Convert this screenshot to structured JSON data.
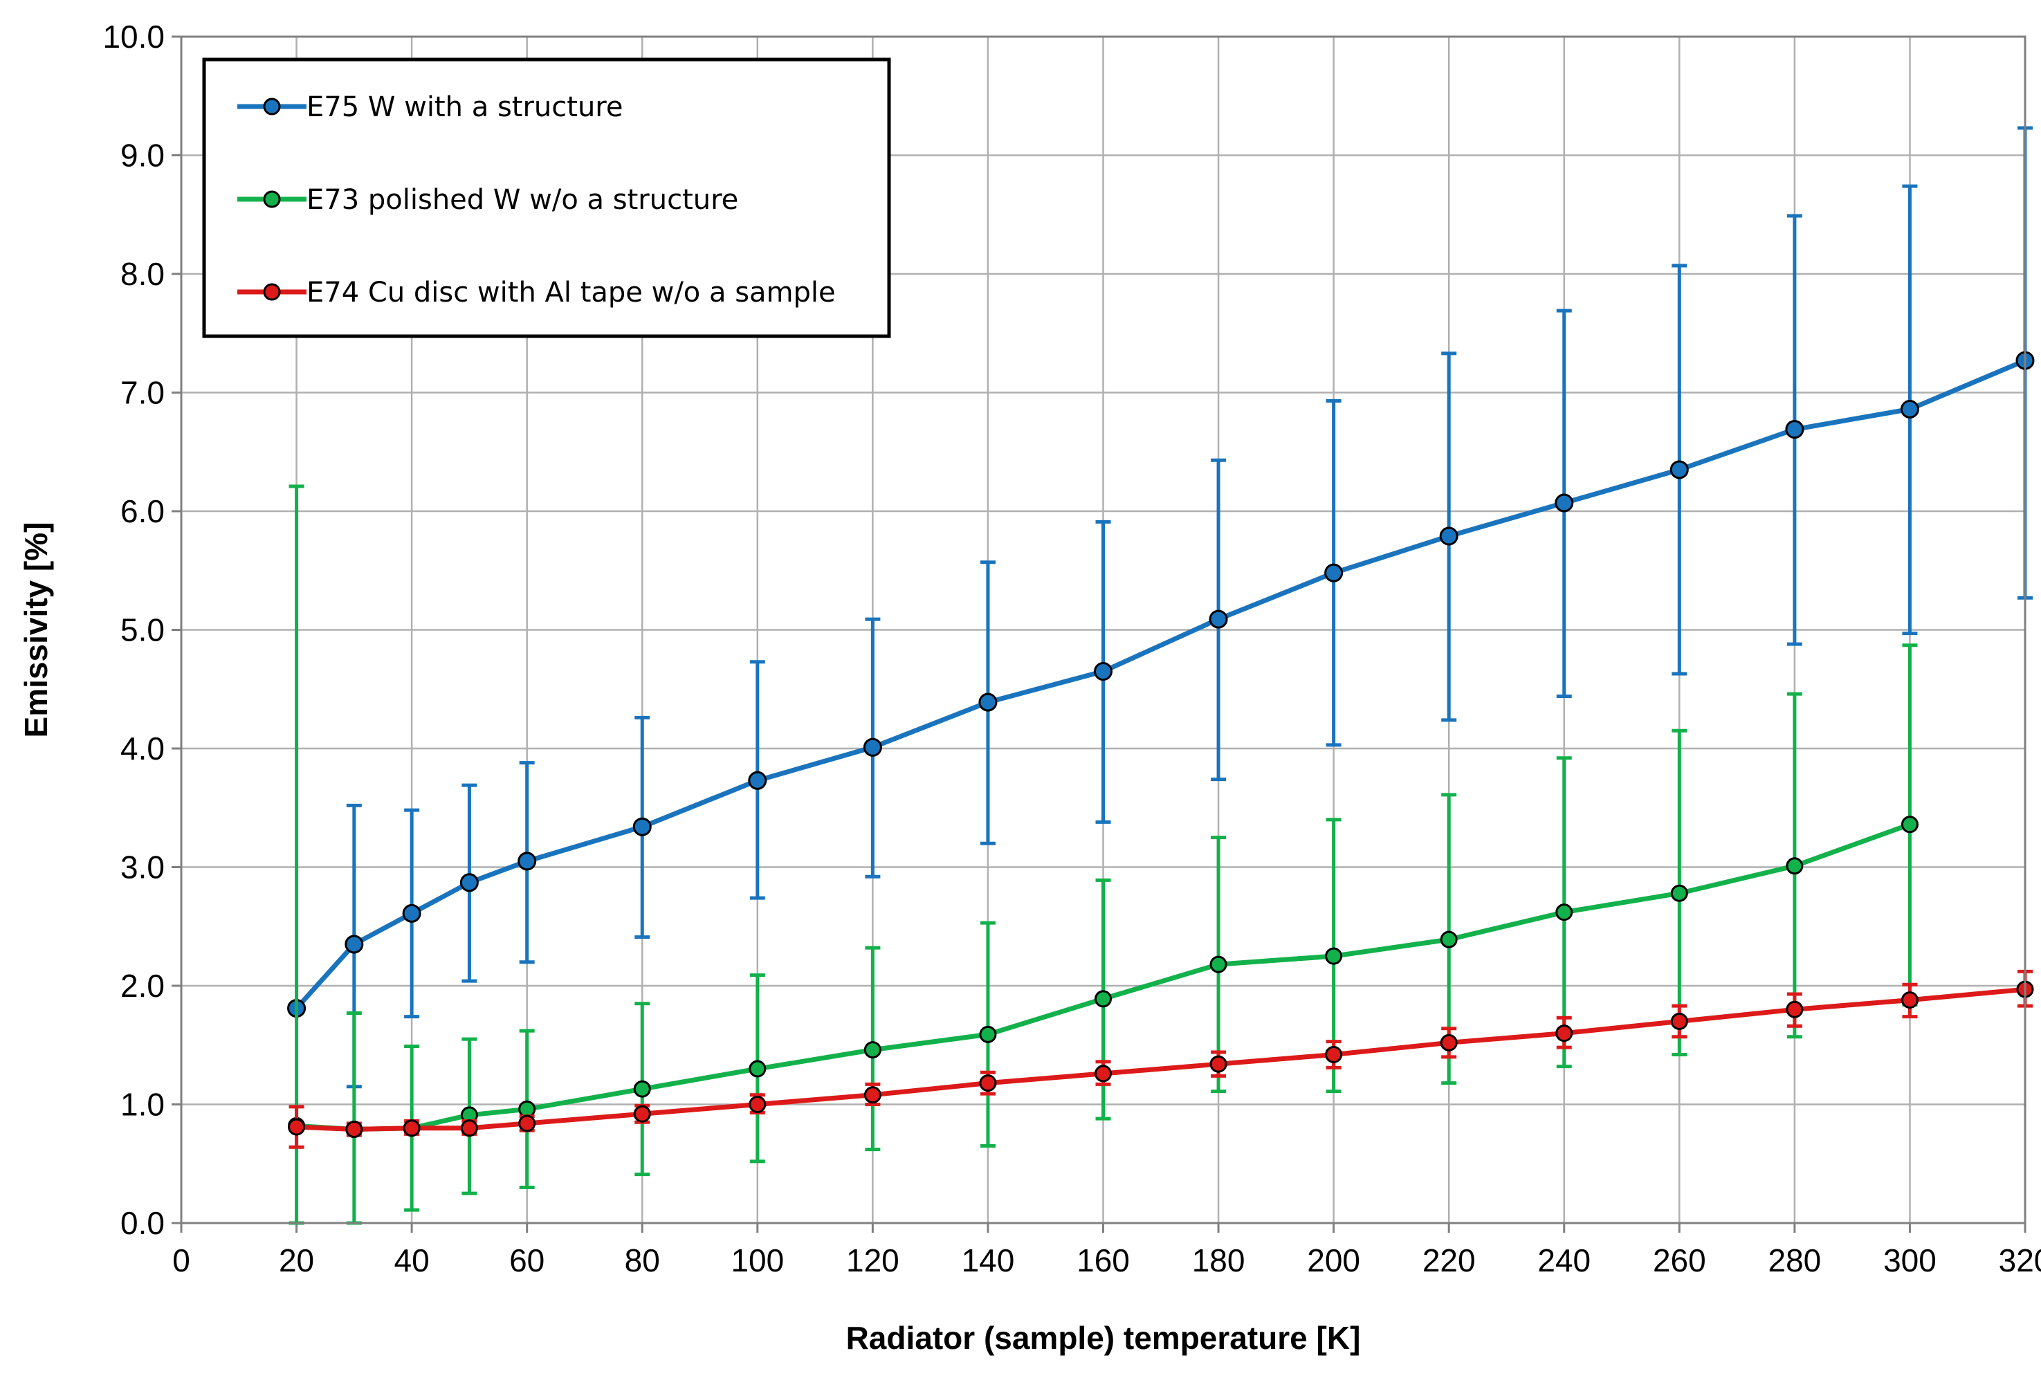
{
  "chart_data": {
    "type": "line",
    "title": "",
    "xlabel": "Radiator (sample) temperature [K]",
    "ylabel": "Emissivity [%]",
    "xlim": [
      0,
      320
    ],
    "ylim": [
      0,
      10
    ],
    "xticks": [
      "0",
      "20",
      "40",
      "60",
      "80",
      "100",
      "120",
      "140",
      "160",
      "180",
      "200",
      "220",
      "240",
      "260",
      "280",
      "300",
      "320"
    ],
    "yticks": [
      "0.0",
      "1.0",
      "2.0",
      "3.0",
      "4.0",
      "5.0",
      "6.0",
      "7.0",
      "8.0",
      "9.0",
      "10.0"
    ],
    "grid": true,
    "legend_position": "top-left",
    "series": [
      {
        "name": "E75 W with a structure",
        "color": "#1a74bd",
        "points": [
          {
            "x": 20,
            "y": 1.81,
            "lo": 1.81,
            "hi": 1.81
          },
          {
            "x": 30,
            "y": 2.35,
            "lo": 1.15,
            "hi": 3.52
          },
          {
            "x": 40,
            "y": 2.61,
            "lo": 1.74,
            "hi": 3.48
          },
          {
            "x": 50,
            "y": 2.87,
            "lo": 2.04,
            "hi": 3.69
          },
          {
            "x": 60,
            "y": 3.05,
            "lo": 2.2,
            "hi": 3.88
          },
          {
            "x": 80,
            "y": 3.34,
            "lo": 2.41,
            "hi": 4.26
          },
          {
            "x": 100,
            "y": 3.73,
            "lo": 2.74,
            "hi": 4.73
          },
          {
            "x": 120,
            "y": 4.01,
            "lo": 2.92,
            "hi": 5.09
          },
          {
            "x": 140,
            "y": 4.39,
            "lo": 3.2,
            "hi": 5.57
          },
          {
            "x": 160,
            "y": 4.65,
            "lo": 3.38,
            "hi": 5.91
          },
          {
            "x": 180,
            "y": 5.09,
            "lo": 3.74,
            "hi": 6.43
          },
          {
            "x": 200,
            "y": 5.48,
            "lo": 4.03,
            "hi": 6.93
          },
          {
            "x": 220,
            "y": 5.79,
            "lo": 4.24,
            "hi": 7.33
          },
          {
            "x": 240,
            "y": 6.07,
            "lo": 4.44,
            "hi": 7.69
          },
          {
            "x": 260,
            "y": 6.35,
            "lo": 4.63,
            "hi": 8.07
          },
          {
            "x": 280,
            "y": 6.69,
            "lo": 4.88,
            "hi": 8.49
          },
          {
            "x": 300,
            "y": 6.86,
            "lo": 4.97,
            "hi": 8.74
          },
          {
            "x": 320,
            "y": 7.27,
            "lo": 5.27,
            "hi": 9.23
          }
        ]
      },
      {
        "name": "E73 polished W w/o a structure",
        "color": "#12b14b",
        "points": [
          {
            "x": 20,
            "y": 0.82,
            "lo": 0.0,
            "hi": 6.21
          },
          {
            "x": 30,
            "y": 0.79,
            "lo": 0.0,
            "hi": 1.77
          },
          {
            "x": 40,
            "y": 0.8,
            "lo": 0.11,
            "hi": 1.49
          },
          {
            "x": 50,
            "y": 0.91,
            "lo": 0.25,
            "hi": 1.55
          },
          {
            "x": 60,
            "y": 0.96,
            "lo": 0.3,
            "hi": 1.62
          },
          {
            "x": 80,
            "y": 1.13,
            "lo": 0.41,
            "hi": 1.85
          },
          {
            "x": 100,
            "y": 1.3,
            "lo": 0.52,
            "hi": 2.09
          },
          {
            "x": 120,
            "y": 1.46,
            "lo": 0.62,
            "hi": 2.32
          },
          {
            "x": 140,
            "y": 1.59,
            "lo": 0.65,
            "hi": 2.53
          },
          {
            "x": 160,
            "y": 1.89,
            "lo": 0.88,
            "hi": 2.89
          },
          {
            "x": 180,
            "y": 2.18,
            "lo": 1.11,
            "hi": 3.25
          },
          {
            "x": 200,
            "y": 2.25,
            "lo": 1.11,
            "hi": 3.4
          },
          {
            "x": 220,
            "y": 2.39,
            "lo": 1.18,
            "hi": 3.61
          },
          {
            "x": 240,
            "y": 2.62,
            "lo": 1.32,
            "hi": 3.92
          },
          {
            "x": 260,
            "y": 2.78,
            "lo": 1.42,
            "hi": 4.15
          },
          {
            "x": 280,
            "y": 3.01,
            "lo": 1.57,
            "hi": 4.46
          },
          {
            "x": 300,
            "y": 3.36,
            "lo": 1.84,
            "hi": 4.87
          }
        ]
      },
      {
        "name": "E74 Cu disc with Al tape w/o a sample",
        "color": "#dd1a1a",
        "points": [
          {
            "x": 20,
            "y": 0.81,
            "lo": 0.64,
            "hi": 0.98
          },
          {
            "x": 30,
            "y": 0.79,
            "lo": 0.74,
            "hi": 0.84
          },
          {
            "x": 40,
            "y": 0.8,
            "lo": 0.75,
            "hi": 0.86
          },
          {
            "x": 50,
            "y": 0.8,
            "lo": 0.75,
            "hi": 0.86
          },
          {
            "x": 60,
            "y": 0.84,
            "lo": 0.78,
            "hi": 0.9
          },
          {
            "x": 80,
            "y": 0.92,
            "lo": 0.85,
            "hi": 0.99
          },
          {
            "x": 100,
            "y": 1.0,
            "lo": 0.93,
            "hi": 1.08
          },
          {
            "x": 120,
            "y": 1.08,
            "lo": 1.0,
            "hi": 1.17
          },
          {
            "x": 140,
            "y": 1.18,
            "lo": 1.09,
            "hi": 1.27
          },
          {
            "x": 160,
            "y": 1.26,
            "lo": 1.17,
            "hi": 1.36
          },
          {
            "x": 180,
            "y": 1.34,
            "lo": 1.24,
            "hi": 1.44
          },
          {
            "x": 200,
            "y": 1.42,
            "lo": 1.31,
            "hi": 1.53
          },
          {
            "x": 220,
            "y": 1.52,
            "lo": 1.4,
            "hi": 1.64
          },
          {
            "x": 240,
            "y": 1.6,
            "lo": 1.48,
            "hi": 1.73
          },
          {
            "x": 260,
            "y": 1.7,
            "lo": 1.57,
            "hi": 1.83
          },
          {
            "x": 280,
            "y": 1.8,
            "lo": 1.66,
            "hi": 1.93
          },
          {
            "x": 300,
            "y": 1.88,
            "lo": 1.74,
            "hi": 2.01
          },
          {
            "x": 320,
            "y": 1.97,
            "lo": 1.83,
            "hi": 2.12
          }
        ]
      }
    ]
  }
}
